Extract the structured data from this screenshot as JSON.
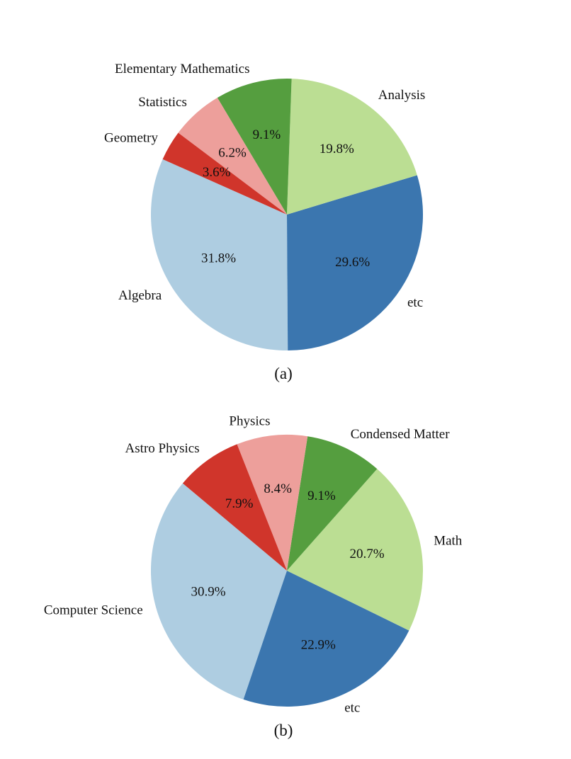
{
  "chart_data": [
    {
      "type": "pie",
      "caption": "(a)",
      "start_angle_deg": 156,
      "direction": "counterclockwise",
      "slices": [
        {
          "label": "Algebra",
          "value": 31.8,
          "pct_label": "31.8%",
          "color": "#aecde1"
        },
        {
          "label": "etc",
          "value": 29.6,
          "pct_label": "29.6%",
          "color": "#3b76af"
        },
        {
          "label": "Analysis",
          "value": 19.8,
          "pct_label": "19.8%",
          "color": "#bbde93"
        },
        {
          "label": "Elementary Mathematics",
          "value": 9.1,
          "pct_label": "9.1%",
          "color": "#559e3f"
        },
        {
          "label": "Statistics",
          "value": 6.2,
          "pct_label": "6.2%",
          "color": "#ed9f9b"
        },
        {
          "label": "Geometry",
          "value": 3.6,
          "pct_label": "3.6%",
          "color": "#d0352b"
        }
      ]
    },
    {
      "type": "pie",
      "caption": "(b)",
      "start_angle_deg": 140,
      "direction": "counterclockwise",
      "slices": [
        {
          "label": "Computer Science",
          "value": 30.9,
          "pct_label": "30.9%",
          "color": "#aecde1"
        },
        {
          "label": "etc",
          "value": 22.9,
          "pct_label": "22.9%",
          "color": "#3b76af"
        },
        {
          "label": "Math",
          "value": 20.7,
          "pct_label": "20.7%",
          "color": "#bbde93"
        },
        {
          "label": "Condensed Matter",
          "value": 9.1,
          "pct_label": "9.1%",
          "color": "#559e3f"
        },
        {
          "label": "Physics",
          "value": 8.4,
          "pct_label": "8.4%",
          "color": "#ed9f9b"
        },
        {
          "label": "Astro Physics",
          "value": 7.9,
          "pct_label": "7.9%",
          "color": "#d0352b"
        }
      ]
    }
  ]
}
